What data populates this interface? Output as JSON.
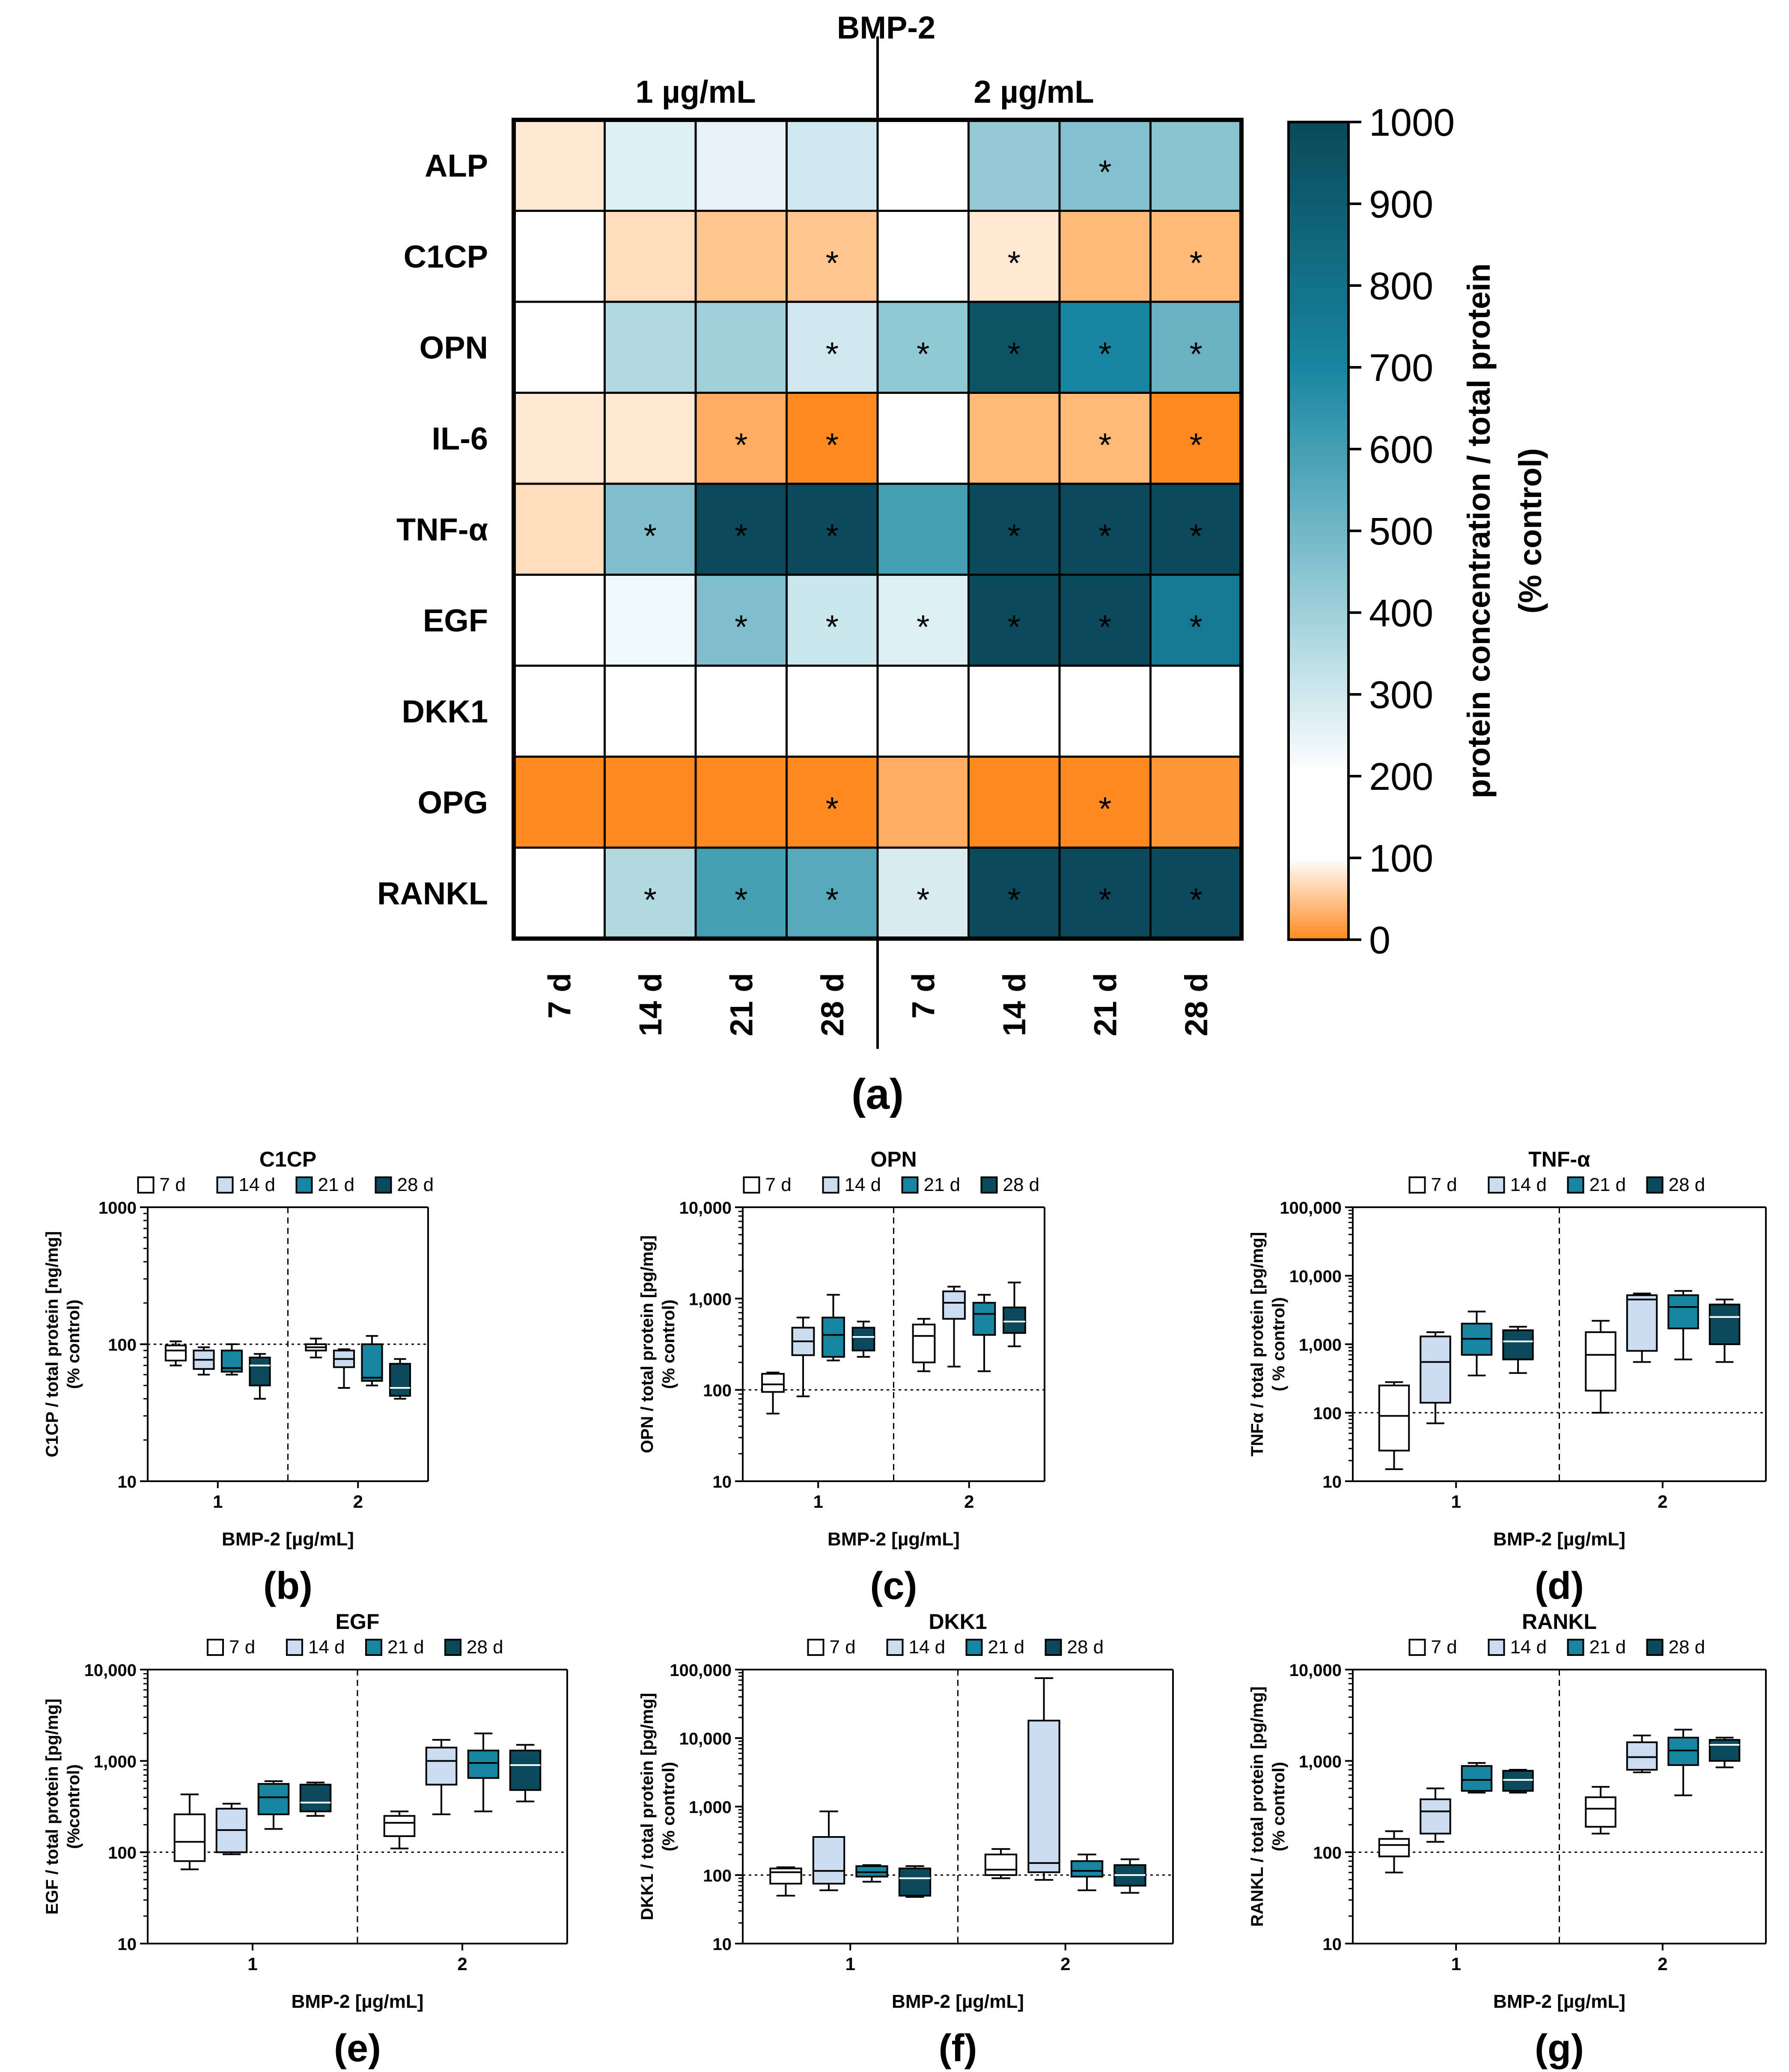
{
  "colors": {
    "dark_teal": "#0a4a5a",
    "teal": "#1786a0",
    "light_teal": "#9fd0da",
    "pale_blue": "#c9dcf0",
    "white": "#ffffff",
    "orange": "#ff8a1f"
  },
  "chart_data": [
    {
      "type": "heatmap",
      "panel_label": "(a)",
      "title": "BMP-2",
      "group_labels": [
        "1 µg/mL",
        "2 µg/mL"
      ],
      "rows": [
        "ALP",
        "C1CP",
        "OPN",
        "IL-6",
        "TNF-α",
        "EGF",
        "DKK1",
        "OPG",
        "RANKL"
      ],
      "columns": [
        "7 d",
        "14 d",
        "21 d",
        "28 d",
        "7 d",
        "14 d",
        "21 d",
        "28 d"
      ],
      "values": [
        [
          80,
          270,
          250,
          300,
          190,
          420,
          460,
          450
        ],
        [
          110,
          70,
          50,
          50,
          110,
          80,
          40,
          40
        ],
        [
          190,
          360,
          400,
          300,
          430,
          950,
          700,
          520
        ],
        [
          80,
          80,
          30,
          0,
          180,
          40,
          40,
          0
        ],
        [
          70,
          470,
          1000,
          1000,
          600,
          1000,
          1000,
          1000
        ],
        [
          160,
          230,
          470,
          310,
          270,
          1000,
          1000,
          760
        ],
        [
          150,
          160,
          160,
          100,
          160,
          180,
          190,
          100
        ],
        [
          0,
          0,
          0,
          0,
          30,
          0,
          0,
          10
        ],
        [
          180,
          360,
          600,
          560,
          280,
          1000,
          1000,
          1000
        ]
      ],
      "significant": [
        [
          false,
          false,
          false,
          false,
          false,
          false,
          true,
          false
        ],
        [
          false,
          false,
          false,
          true,
          false,
          true,
          false,
          true
        ],
        [
          false,
          false,
          false,
          true,
          true,
          true,
          true,
          true
        ],
        [
          false,
          false,
          true,
          true,
          false,
          false,
          true,
          true
        ],
        [
          false,
          true,
          true,
          true,
          false,
          true,
          true,
          true
        ],
        [
          false,
          false,
          true,
          true,
          true,
          true,
          true,
          true
        ],
        [
          false,
          false,
          false,
          false,
          false,
          false,
          false,
          false
        ],
        [
          false,
          false,
          false,
          true,
          false,
          false,
          true,
          false
        ],
        [
          false,
          true,
          true,
          true,
          true,
          true,
          true,
          true
        ]
      ],
      "significance_symbol": "*",
      "colorbar": {
        "label": "protein concentration / total protein",
        "label2": "(% control)",
        "ticks": [
          0,
          100,
          200,
          300,
          400,
          500,
          600,
          700,
          800,
          900,
          1000
        ],
        "tick_labels": [
          "0",
          "100",
          "200",
          "300",
          "400",
          "500",
          "600",
          "700",
          "800",
          "900",
          "1000"
        ],
        "range": [
          0,
          1000
        ]
      }
    },
    {
      "type": "box",
      "panel_label": "(b)",
      "title": "C1CP",
      "ylabel": "C1CP / total protein [ng/mg]",
      "ylabel2": "(% control)",
      "xlabel": "BMP-2 [µg/mL]",
      "categories": [
        "1",
        "2"
      ],
      "yscale": "log",
      "ylim": [
        10,
        1000
      ],
      "yticks": [
        "10",
        "100",
        "1000"
      ],
      "reference_line": 100,
      "legend": [
        "7 d",
        "14 d",
        "21 d",
        "28 d"
      ],
      "boxes": [
        {
          "series": "7 d",
          "group": "1",
          "min": 70,
          "q1": 76,
          "median": 90,
          "q3": 98,
          "max": 105
        },
        {
          "series": "14 d",
          "group": "1",
          "min": 60,
          "q1": 66,
          "median": 77,
          "q3": 90,
          "max": 95
        },
        {
          "series": "21 d",
          "group": "1",
          "min": 60,
          "q1": 63,
          "median": 67,
          "q3": 90,
          "max": 100
        },
        {
          "series": "28 d",
          "group": "1",
          "min": 40,
          "q1": 50,
          "median": 70,
          "q3": 80,
          "max": 85
        },
        {
          "series": "7 d",
          "group": "2",
          "min": 80,
          "q1": 90,
          "median": 95,
          "q3": 100,
          "max": 110
        },
        {
          "series": "14 d",
          "group": "2",
          "min": 48,
          "q1": 68,
          "median": 78,
          "q3": 90,
          "max": 92
        },
        {
          "series": "21 d",
          "group": "2",
          "min": 50,
          "q1": 54,
          "median": 57,
          "q3": 100,
          "max": 115
        },
        {
          "series": "28 d",
          "group": "2",
          "min": 40,
          "q1": 42,
          "median": 48,
          "q3": 72,
          "max": 78
        }
      ],
      "annotations": [
        "#",
        "*",
        "°"
      ]
    },
    {
      "type": "box",
      "panel_label": "(c)",
      "title": "OPN",
      "ylabel": "OPN / total protein [pg/mg]",
      "ylabel2": "(% control)",
      "xlabel": "BMP-2 [µg/mL]",
      "categories": [
        "1",
        "2"
      ],
      "yscale": "log",
      "ylim": [
        10,
        10000
      ],
      "yticks": [
        "10",
        "100",
        "1,000",
        "10,000"
      ],
      "reference_line": 100,
      "legend": [
        "7 d",
        "14 d",
        "21 d",
        "28 d"
      ],
      "boxes": [
        {
          "series": "7 d",
          "group": "1",
          "min": 55,
          "q1": 95,
          "median": 115,
          "q3": 150,
          "max": 155
        },
        {
          "series": "14 d",
          "group": "1",
          "min": 85,
          "q1": 240,
          "median": 340,
          "q3": 480,
          "max": 620
        },
        {
          "series": "21 d",
          "group": "1",
          "min": 210,
          "q1": 230,
          "median": 400,
          "q3": 620,
          "max": 1100
        },
        {
          "series": "28 d",
          "group": "1",
          "min": 230,
          "q1": 270,
          "median": 380,
          "q3": 480,
          "max": 560
        },
        {
          "series": "7 d",
          "group": "2",
          "min": 160,
          "q1": 200,
          "median": 390,
          "q3": 520,
          "max": 600
        },
        {
          "series": "14 d",
          "group": "2",
          "min": 180,
          "q1": 600,
          "median": 900,
          "q3": 1200,
          "max": 1350
        },
        {
          "series": "21 d",
          "group": "2",
          "min": 160,
          "q1": 400,
          "median": 680,
          "q3": 900,
          "max": 1100
        },
        {
          "series": "28 d",
          "group": "2",
          "min": 300,
          "q1": 420,
          "median": 560,
          "q3": 800,
          "max": 1500
        }
      ],
      "annotations": [
        "#",
        "*",
        "°"
      ]
    },
    {
      "type": "box",
      "panel_label": "(d)",
      "title": "TNF-α",
      "ylabel": "TNFα / total protein [pg/mg]",
      "ylabel2": "( % control)",
      "xlabel": "BMP-2 [µg/mL]",
      "categories": [
        "1",
        "2"
      ],
      "yscale": "log",
      "ylim": [
        10,
        100000
      ],
      "yticks": [
        "10",
        "100",
        "1,000",
        "10,000",
        "100,000"
      ],
      "reference_line": 100,
      "legend": [
        "7 d",
        "14 d",
        "21 d",
        "28 d"
      ],
      "boxes": [
        {
          "series": "7 d",
          "group": "1",
          "min": 15,
          "q1": 28,
          "median": 90,
          "q3": 250,
          "max": 280
        },
        {
          "series": "14 d",
          "group": "1",
          "min": 70,
          "q1": 140,
          "median": 550,
          "q3": 1300,
          "max": 1500
        },
        {
          "series": "21 d",
          "group": "1",
          "min": 350,
          "q1": 700,
          "median": 1200,
          "q3": 2000,
          "max": 3000
        },
        {
          "series": "28 d",
          "group": "1",
          "min": 380,
          "q1": 600,
          "median": 1100,
          "q3": 1600,
          "max": 1800
        },
        {
          "series": "7 d",
          "group": "2",
          "min": 100,
          "q1": 210,
          "median": 700,
          "q3": 1500,
          "max": 2200
        },
        {
          "series": "14 d",
          "group": "2",
          "min": 550,
          "q1": 800,
          "median": 4500,
          "q3": 5200,
          "max": 5500
        },
        {
          "series": "21 d",
          "group": "2",
          "min": 600,
          "q1": 1700,
          "median": 3500,
          "q3": 5200,
          "max": 6000
        },
        {
          "series": "28 d",
          "group": "2",
          "min": 550,
          "q1": 1000,
          "median": 2500,
          "q3": 3800,
          "max": 4500
        }
      ],
      "annotations": [
        "#",
        "*",
        "°"
      ]
    },
    {
      "type": "box",
      "panel_label": "(e)",
      "title": "EGF",
      "ylabel": "EGF / total protein [pg/mg]",
      "ylabel2": "(%control)",
      "xlabel": "BMP-2 [µg/mL]",
      "categories": [
        "1",
        "2"
      ],
      "yscale": "log",
      "ylim": [
        10,
        10000
      ],
      "yticks": [
        "10",
        "100",
        "1,000",
        "10,000"
      ],
      "reference_line": 100,
      "legend": [
        "7 d",
        "14 d",
        "21 d",
        "28 d"
      ],
      "boxes": [
        {
          "series": "7 d",
          "group": "1",
          "min": 65,
          "q1": 80,
          "median": 130,
          "q3": 260,
          "max": 430
        },
        {
          "series": "14 d",
          "group": "1",
          "min": 95,
          "q1": 100,
          "median": 175,
          "q3": 300,
          "max": 340
        },
        {
          "series": "21 d",
          "group": "1",
          "min": 180,
          "q1": 260,
          "median": 400,
          "q3": 560,
          "max": 600
        },
        {
          "series": "28 d",
          "group": "1",
          "min": 250,
          "q1": 280,
          "median": 350,
          "q3": 550,
          "max": 580
        },
        {
          "series": "7 d",
          "group": "2",
          "min": 110,
          "q1": 150,
          "median": 210,
          "q3": 250,
          "max": 280
        },
        {
          "series": "14 d",
          "group": "2",
          "min": 260,
          "q1": 550,
          "median": 1000,
          "q3": 1400,
          "max": 1700
        },
        {
          "series": "21 d",
          "group": "2",
          "min": 280,
          "q1": 650,
          "median": 950,
          "q3": 1300,
          "max": 2000
        },
        {
          "series": "28 d",
          "group": "2",
          "min": 360,
          "q1": 480,
          "median": 900,
          "q3": 1300,
          "max": 1500
        }
      ],
      "annotations": [
        "#",
        "*",
        "°"
      ]
    },
    {
      "type": "box",
      "panel_label": "(f)",
      "title": "DKK1",
      "ylabel": "DKK1 / total protein [pg/mg]",
      "ylabel2": "(% control)",
      "xlabel": "BMP-2 [µg/mL]",
      "categories": [
        "1",
        "2"
      ],
      "yscale": "log",
      "ylim": [
        10,
        100000
      ],
      "yticks": [
        "10",
        "100",
        "1,000",
        "10,000",
        "100,000"
      ],
      "reference_line": 100,
      "legend": [
        "7 d",
        "14 d",
        "21 d",
        "28 d"
      ],
      "boxes": [
        {
          "series": "7 d",
          "group": "1",
          "min": 50,
          "q1": 75,
          "median": 110,
          "q3": 125,
          "max": 130
        },
        {
          "series": "14 d",
          "group": "1",
          "min": 60,
          "q1": 75,
          "median": 115,
          "q3": 360,
          "max": 850
        },
        {
          "series": "21 d",
          "group": "1",
          "min": 80,
          "q1": 95,
          "median": 110,
          "q3": 135,
          "max": 140
        },
        {
          "series": "28 d",
          "group": "1",
          "min": 48,
          "q1": 50,
          "median": 90,
          "q3": 125,
          "max": 135
        },
        {
          "series": "7 d",
          "group": "2",
          "min": 90,
          "q1": 100,
          "median": 120,
          "q3": 200,
          "max": 240
        },
        {
          "series": "14 d",
          "group": "2",
          "min": 85,
          "q1": 110,
          "median": 150,
          "q3": 18000,
          "max": 75000
        },
        {
          "series": "21 d",
          "group": "2",
          "min": 60,
          "q1": 95,
          "median": 115,
          "q3": 160,
          "max": 200
        },
        {
          "series": "28 d",
          "group": "2",
          "min": 55,
          "q1": 70,
          "median": 100,
          "q3": 140,
          "max": 170
        }
      ],
      "annotations": [
        "#"
      ]
    },
    {
      "type": "box",
      "panel_label": "(g)",
      "title": "RANKL",
      "ylabel": "RANKL / total protein [pg/mg]",
      "ylabel2": "(% control)",
      "xlabel": "BMP-2 [µg/mL]",
      "categories": [
        "1",
        "2"
      ],
      "yscale": "log",
      "ylim": [
        10,
        10000
      ],
      "yticks": [
        "10",
        "100",
        "1,000",
        "10,000"
      ],
      "reference_line": 100,
      "legend": [
        "7 d",
        "14 d",
        "21 d",
        "28 d"
      ],
      "boxes": [
        {
          "series": "7 d",
          "group": "1",
          "min": 60,
          "q1": 90,
          "median": 120,
          "q3": 140,
          "max": 170
        },
        {
          "series": "14 d",
          "group": "1",
          "min": 130,
          "q1": 160,
          "median": 280,
          "q3": 380,
          "max": 500
        },
        {
          "series": "21 d",
          "group": "1",
          "min": 450,
          "q1": 470,
          "median": 620,
          "q3": 880,
          "max": 950
        },
        {
          "series": "28 d",
          "group": "1",
          "min": 450,
          "q1": 470,
          "median": 620,
          "q3": 780,
          "max": 800
        },
        {
          "series": "7 d",
          "group": "2",
          "min": 160,
          "q1": 190,
          "median": 300,
          "q3": 400,
          "max": 520
        },
        {
          "series": "14 d",
          "group": "2",
          "min": 750,
          "q1": 800,
          "median": 1100,
          "q3": 1600,
          "max": 1900
        },
        {
          "series": "21 d",
          "group": "2",
          "min": 420,
          "q1": 900,
          "median": 1300,
          "q3": 1800,
          "max": 2200
        },
        {
          "series": "28 d",
          "group": "2",
          "min": 850,
          "q1": 1000,
          "median": 1500,
          "q3": 1700,
          "max": 1800
        }
      ],
      "annotations": [
        "#",
        "*",
        "°"
      ]
    }
  ]
}
